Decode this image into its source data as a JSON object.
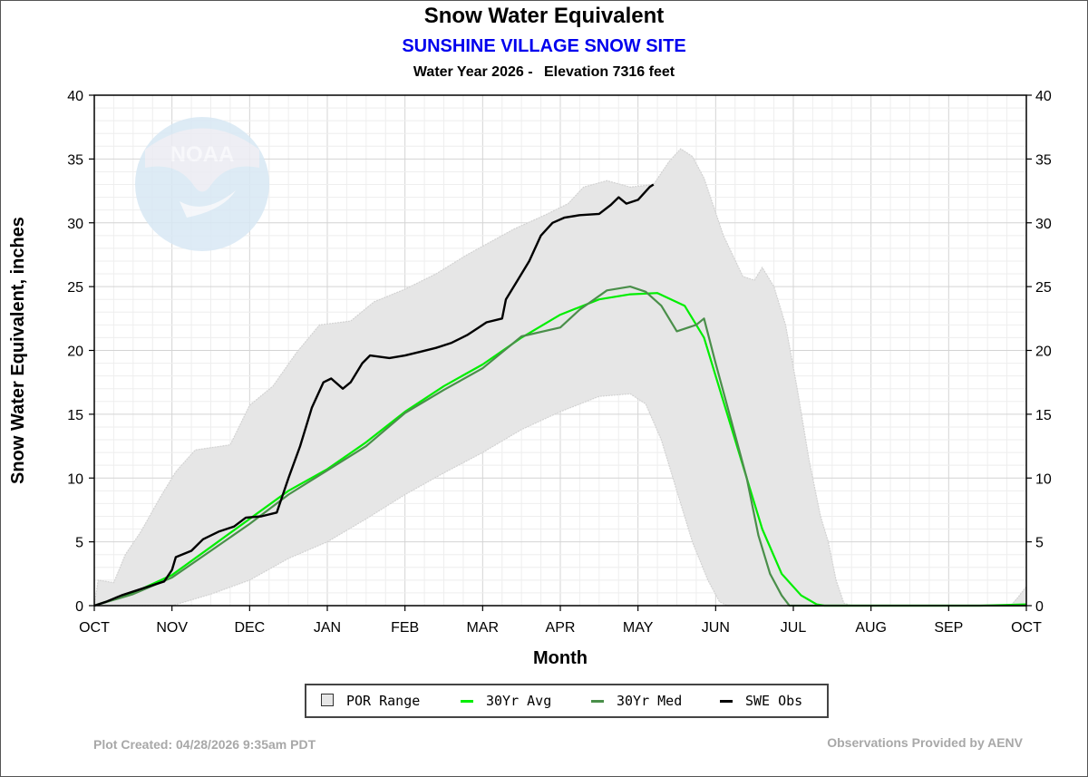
{
  "header": {
    "title": "Snow Water Equivalent",
    "site": "SUNSHINE VILLAGE SNOW SITE",
    "water_year": "Water Year 2026 -",
    "elevation": "Elevation 7316 feet"
  },
  "footer": {
    "created": "Plot Created: 04/28/2026 9:35am PDT",
    "provider": "Observations Provided by AENV"
  },
  "legend": [
    {
      "label": "POR Range",
      "kind": "box",
      "color": "#e6e6e6"
    },
    {
      "label": "30Yr Avg",
      "kind": "line",
      "color": "#00ee00"
    },
    {
      "label": "30Yr Med",
      "kind": "line",
      "color": "#4a8f4a"
    },
    {
      "label": "SWE Obs",
      "kind": "line",
      "color": "#000000"
    }
  ],
  "watermark": {
    "text": "NOAA",
    "icon": "noaa-logo-icon"
  },
  "chart_data": {
    "type": "line",
    "title": "Snow Water Equivalent",
    "subtitle": "SUNSHINE VILLAGE SNOW SITE",
    "xlabel": "Month",
    "ylabel": "Snow Water Equivalent, inches",
    "xlim": [
      0,
      12
    ],
    "ylim": [
      0,
      40
    ],
    "x_ticks": [
      0,
      1,
      2,
      3,
      4,
      5,
      6,
      7,
      8,
      9,
      10,
      11,
      12
    ],
    "x_tick_labels": [
      "OCT",
      "NOV",
      "DEC",
      "JAN",
      "FEB",
      "MAR",
      "APR",
      "MAY",
      "JUN",
      "JUL",
      "AUG",
      "SEP",
      "OCT"
    ],
    "y_ticks": [
      0,
      5,
      10,
      15,
      20,
      25,
      30,
      35,
      40
    ],
    "y_tick_labels": [
      "0",
      "5",
      "10",
      "15",
      "20",
      "25",
      "30",
      "35",
      "40"
    ],
    "grid": true,
    "series": [
      {
        "name": "POR Range",
        "style": "band",
        "color": "#e6e6e6",
        "upper": [
          [
            0,
            0
          ],
          [
            0.05,
            2.0
          ],
          [
            0.25,
            1.8
          ],
          [
            0.4,
            4.0
          ],
          [
            0.6,
            5.8
          ],
          [
            0.85,
            8.5
          ],
          [
            1.05,
            10.5
          ],
          [
            1.3,
            12.2
          ],
          [
            1.75,
            12.6
          ],
          [
            2.0,
            15.7
          ],
          [
            2.3,
            17.2
          ],
          [
            2.6,
            19.8
          ],
          [
            2.9,
            22.0
          ],
          [
            3.3,
            22.3
          ],
          [
            3.6,
            23.8
          ],
          [
            4.0,
            24.8
          ],
          [
            4.4,
            26.0
          ],
          [
            4.8,
            27.5
          ],
          [
            5.1,
            28.5
          ],
          [
            5.4,
            29.5
          ],
          [
            5.8,
            30.6
          ],
          [
            6.1,
            31.5
          ],
          [
            6.3,
            32.8
          ],
          [
            6.6,
            33.3
          ],
          [
            6.9,
            32.8
          ],
          [
            7.2,
            33.0
          ],
          [
            7.4,
            34.8
          ],
          [
            7.55,
            35.8
          ],
          [
            7.7,
            35.2
          ],
          [
            7.85,
            33.5
          ],
          [
            8.1,
            29.0
          ],
          [
            8.35,
            25.8
          ],
          [
            8.5,
            25.5
          ],
          [
            8.6,
            26.5
          ],
          [
            8.75,
            25.0
          ],
          [
            8.9,
            22.0
          ],
          [
            9.05,
            17.0
          ],
          [
            9.2,
            11.5
          ],
          [
            9.35,
            7.0
          ],
          [
            9.45,
            5.0
          ],
          [
            9.55,
            2.0
          ],
          [
            9.65,
            0.2
          ],
          [
            9.75,
            0
          ],
          [
            11.8,
            0
          ],
          [
            11.9,
            0.7
          ],
          [
            12.0,
            1.5
          ]
        ],
        "lower": [
          [
            0,
            0
          ],
          [
            1.0,
            0
          ],
          [
            1.5,
            0.9
          ],
          [
            2.0,
            2.0
          ],
          [
            2.5,
            3.7
          ],
          [
            3.0,
            5.0
          ],
          [
            3.5,
            6.8
          ],
          [
            4.0,
            8.7
          ],
          [
            4.5,
            10.4
          ],
          [
            5.0,
            12.0
          ],
          [
            5.5,
            13.8
          ],
          [
            6.0,
            15.2
          ],
          [
            6.5,
            16.4
          ],
          [
            6.9,
            16.6
          ],
          [
            7.1,
            15.8
          ],
          [
            7.3,
            13.0
          ],
          [
            7.5,
            9.0
          ],
          [
            7.7,
            5.0
          ],
          [
            7.9,
            2.0
          ],
          [
            8.05,
            0.3
          ],
          [
            8.15,
            0
          ],
          [
            12.0,
            0
          ]
        ]
      },
      {
        "name": "30Yr Avg",
        "color": "#00ee00",
        "points": [
          [
            0,
            0
          ],
          [
            0.5,
            1.0
          ],
          [
            1.0,
            2.4
          ],
          [
            1.5,
            4.6
          ],
          [
            2.0,
            6.8
          ],
          [
            2.5,
            9.0
          ],
          [
            3.0,
            10.7
          ],
          [
            3.5,
            12.8
          ],
          [
            4.0,
            15.2
          ],
          [
            4.5,
            17.2
          ],
          [
            5.0,
            18.9
          ],
          [
            5.5,
            21.0
          ],
          [
            6.0,
            22.8
          ],
          [
            6.5,
            24.0
          ],
          [
            6.9,
            24.4
          ],
          [
            7.25,
            24.5
          ],
          [
            7.6,
            23.5
          ],
          [
            7.85,
            21.0
          ],
          [
            8.05,
            17.0
          ],
          [
            8.3,
            12.0
          ],
          [
            8.6,
            6.0
          ],
          [
            8.85,
            2.5
          ],
          [
            9.1,
            0.8
          ],
          [
            9.3,
            0.1
          ],
          [
            9.4,
            0
          ],
          [
            11.4,
            0
          ],
          [
            12.0,
            0.1
          ]
        ]
      },
      {
        "name": "30Yr Med",
        "color": "#4a8f4a",
        "points": [
          [
            0,
            0
          ],
          [
            0.5,
            0.9
          ],
          [
            1.0,
            2.2
          ],
          [
            1.5,
            4.3
          ],
          [
            2.0,
            6.4
          ],
          [
            2.5,
            8.7
          ],
          [
            3.0,
            10.6
          ],
          [
            3.5,
            12.5
          ],
          [
            4.0,
            15.1
          ],
          [
            4.5,
            16.9
          ],
          [
            5.0,
            18.6
          ],
          [
            5.5,
            21.1
          ],
          [
            6.0,
            21.8
          ],
          [
            6.25,
            23.2
          ],
          [
            6.6,
            24.7
          ],
          [
            6.9,
            25.0
          ],
          [
            7.1,
            24.6
          ],
          [
            7.3,
            23.5
          ],
          [
            7.5,
            21.5
          ],
          [
            7.75,
            22.0
          ],
          [
            7.85,
            22.5
          ],
          [
            8.0,
            19.0
          ],
          [
            8.2,
            14.5
          ],
          [
            8.4,
            10.0
          ],
          [
            8.55,
            5.5
          ],
          [
            8.7,
            2.5
          ],
          [
            8.85,
            0.8
          ],
          [
            8.95,
            0
          ],
          [
            12.0,
            0
          ]
        ]
      },
      {
        "name": "SWE Obs",
        "color": "#000000",
        "points": [
          [
            0,
            0
          ],
          [
            0.15,
            0.3
          ],
          [
            0.35,
            0.8
          ],
          [
            0.6,
            1.3
          ],
          [
            0.9,
            1.9
          ],
          [
            1.0,
            2.8
          ],
          [
            1.05,
            3.8
          ],
          [
            1.25,
            4.3
          ],
          [
            1.4,
            5.2
          ],
          [
            1.6,
            5.8
          ],
          [
            1.8,
            6.2
          ],
          [
            1.95,
            6.9
          ],
          [
            2.15,
            7.0
          ],
          [
            2.35,
            7.3
          ],
          [
            2.5,
            10.0
          ],
          [
            2.65,
            12.5
          ],
          [
            2.8,
            15.5
          ],
          [
            2.95,
            17.5
          ],
          [
            3.05,
            17.8
          ],
          [
            3.2,
            17.0
          ],
          [
            3.3,
            17.5
          ],
          [
            3.45,
            19.0
          ],
          [
            3.55,
            19.6
          ],
          [
            3.8,
            19.4
          ],
          [
            4.0,
            19.6
          ],
          [
            4.2,
            19.9
          ],
          [
            4.4,
            20.2
          ],
          [
            4.6,
            20.6
          ],
          [
            4.8,
            21.2
          ],
          [
            4.95,
            21.8
          ],
          [
            5.05,
            22.2
          ],
          [
            5.25,
            22.5
          ],
          [
            5.3,
            24.0
          ],
          [
            5.45,
            25.5
          ],
          [
            5.6,
            27.0
          ],
          [
            5.75,
            29.0
          ],
          [
            5.9,
            30.0
          ],
          [
            6.05,
            30.4
          ],
          [
            6.25,
            30.6
          ],
          [
            6.5,
            30.7
          ],
          [
            6.65,
            31.4
          ],
          [
            6.75,
            32.0
          ],
          [
            6.85,
            31.5
          ],
          [
            7.0,
            31.8
          ],
          [
            7.15,
            32.8
          ],
          [
            7.2,
            33.0
          ]
        ]
      }
    ]
  }
}
